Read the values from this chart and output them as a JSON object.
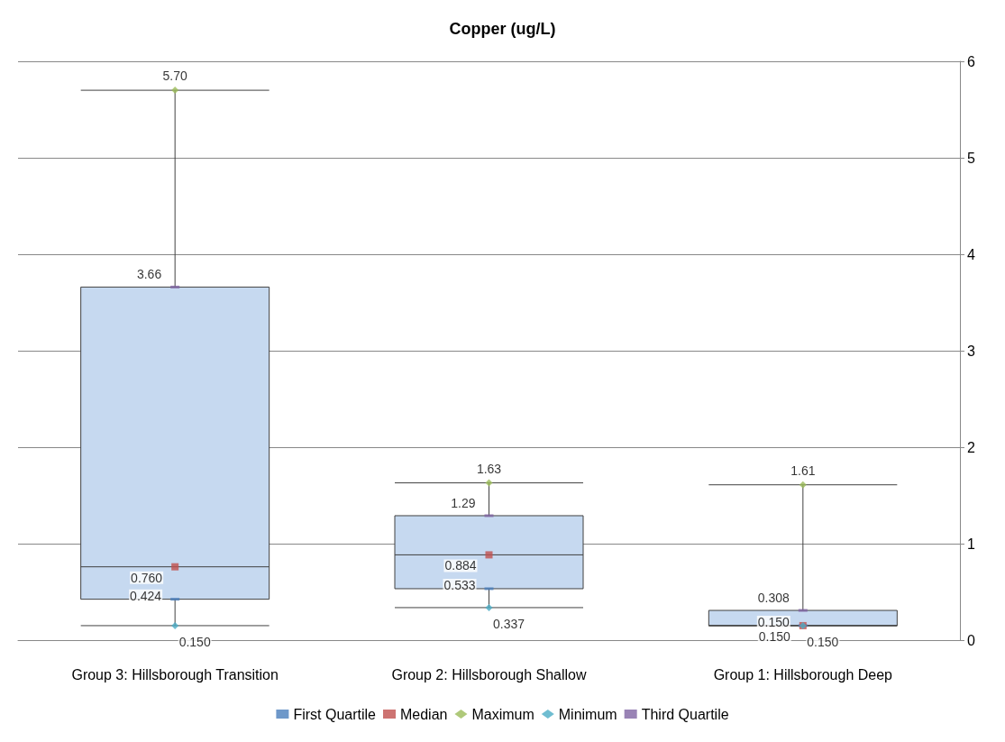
{
  "chart_data": {
    "type": "box",
    "title": "Copper (ug/L)",
    "categories": [
      "Group 3: Hillsborough Transition",
      "Group 2: Hillsborough Shallow",
      "Group 1: Hillsborough Deep"
    ],
    "boxes": [
      {
        "low": 0.15,
        "q1": 0.424,
        "median": 0.76,
        "q3": 3.66,
        "high": 5.7
      },
      {
        "low": 0.337,
        "q1": 0.533,
        "median": 0.884,
        "q3": 1.29,
        "high": 1.63
      },
      {
        "low": 0.15,
        "q1": 0.15,
        "median": 0.15,
        "q3": 0.308,
        "high": 1.61
      }
    ],
    "color": "#c6d9f0",
    "series": [
      {
        "type": "scatter",
        "name": "First Quartile",
        "color": "#4a7ebb",
        "x": [
          "Group 3: Hillsborough Transition",
          "Group 2: Hillsborough Shallow",
          "Group 1: Hillsborough Deep"
        ],
        "values": [
          0.424,
          0.533,
          0.15
        ],
        "value_labels": [
          "0.424",
          "0.533",
          "0.150"
        ]
      },
      {
        "type": "scatter",
        "name": "Median",
        "color": "#c0504d",
        "marker": "square",
        "x": [
          "Group 3: Hillsborough Transition",
          "Group 2: Hillsborough Shallow",
          "Group 1: Hillsborough Deep"
        ],
        "values": [
          0.76,
          0.884,
          0.15
        ],
        "value_labels": [
          "0.760",
          "0.884",
          "0.150"
        ]
      },
      {
        "type": "scatter",
        "name": "Maximum",
        "color": "#9bbb59",
        "marker": "diamond",
        "x": [
          "Group 3: Hillsborough Transition",
          "Group 2: Hillsborough Shallow",
          "Group 1: Hillsborough Deep"
        ],
        "values": [
          5.7,
          1.63,
          1.61
        ],
        "value_labels": [
          "5.70",
          "1.63",
          "1.61"
        ]
      },
      {
        "type": "scatter",
        "name": "Minimum",
        "color": "#4bacc6",
        "marker": "diamond",
        "x": [
          "Group 3: Hillsborough Transition",
          "Group 2: Hillsborough Shallow",
          "Group 1: Hillsborough Deep"
        ],
        "values": [
          0.15,
          0.337,
          0.15
        ],
        "value_labels": [
          "0.150",
          "0.337",
          "0.150"
        ]
      },
      {
        "type": "scatter",
        "name": "Third Quartile",
        "color": "#8064a2",
        "x": [
          "Group 3: Hillsborough Transition",
          "Group 2: Hillsborough Shallow",
          "Group 1: Hillsborough Deep"
        ],
        "values": [
          3.66,
          1.29,
          0.308
        ],
        "value_labels": [
          "3.66",
          "1.29",
          "0.308"
        ]
      }
    ],
    "ylim": [
      0,
      6
    ],
    "yticks": [
      0,
      1,
      2,
      3,
      4,
      5,
      6
    ],
    "grid": "y",
    "legend": "bottom"
  }
}
